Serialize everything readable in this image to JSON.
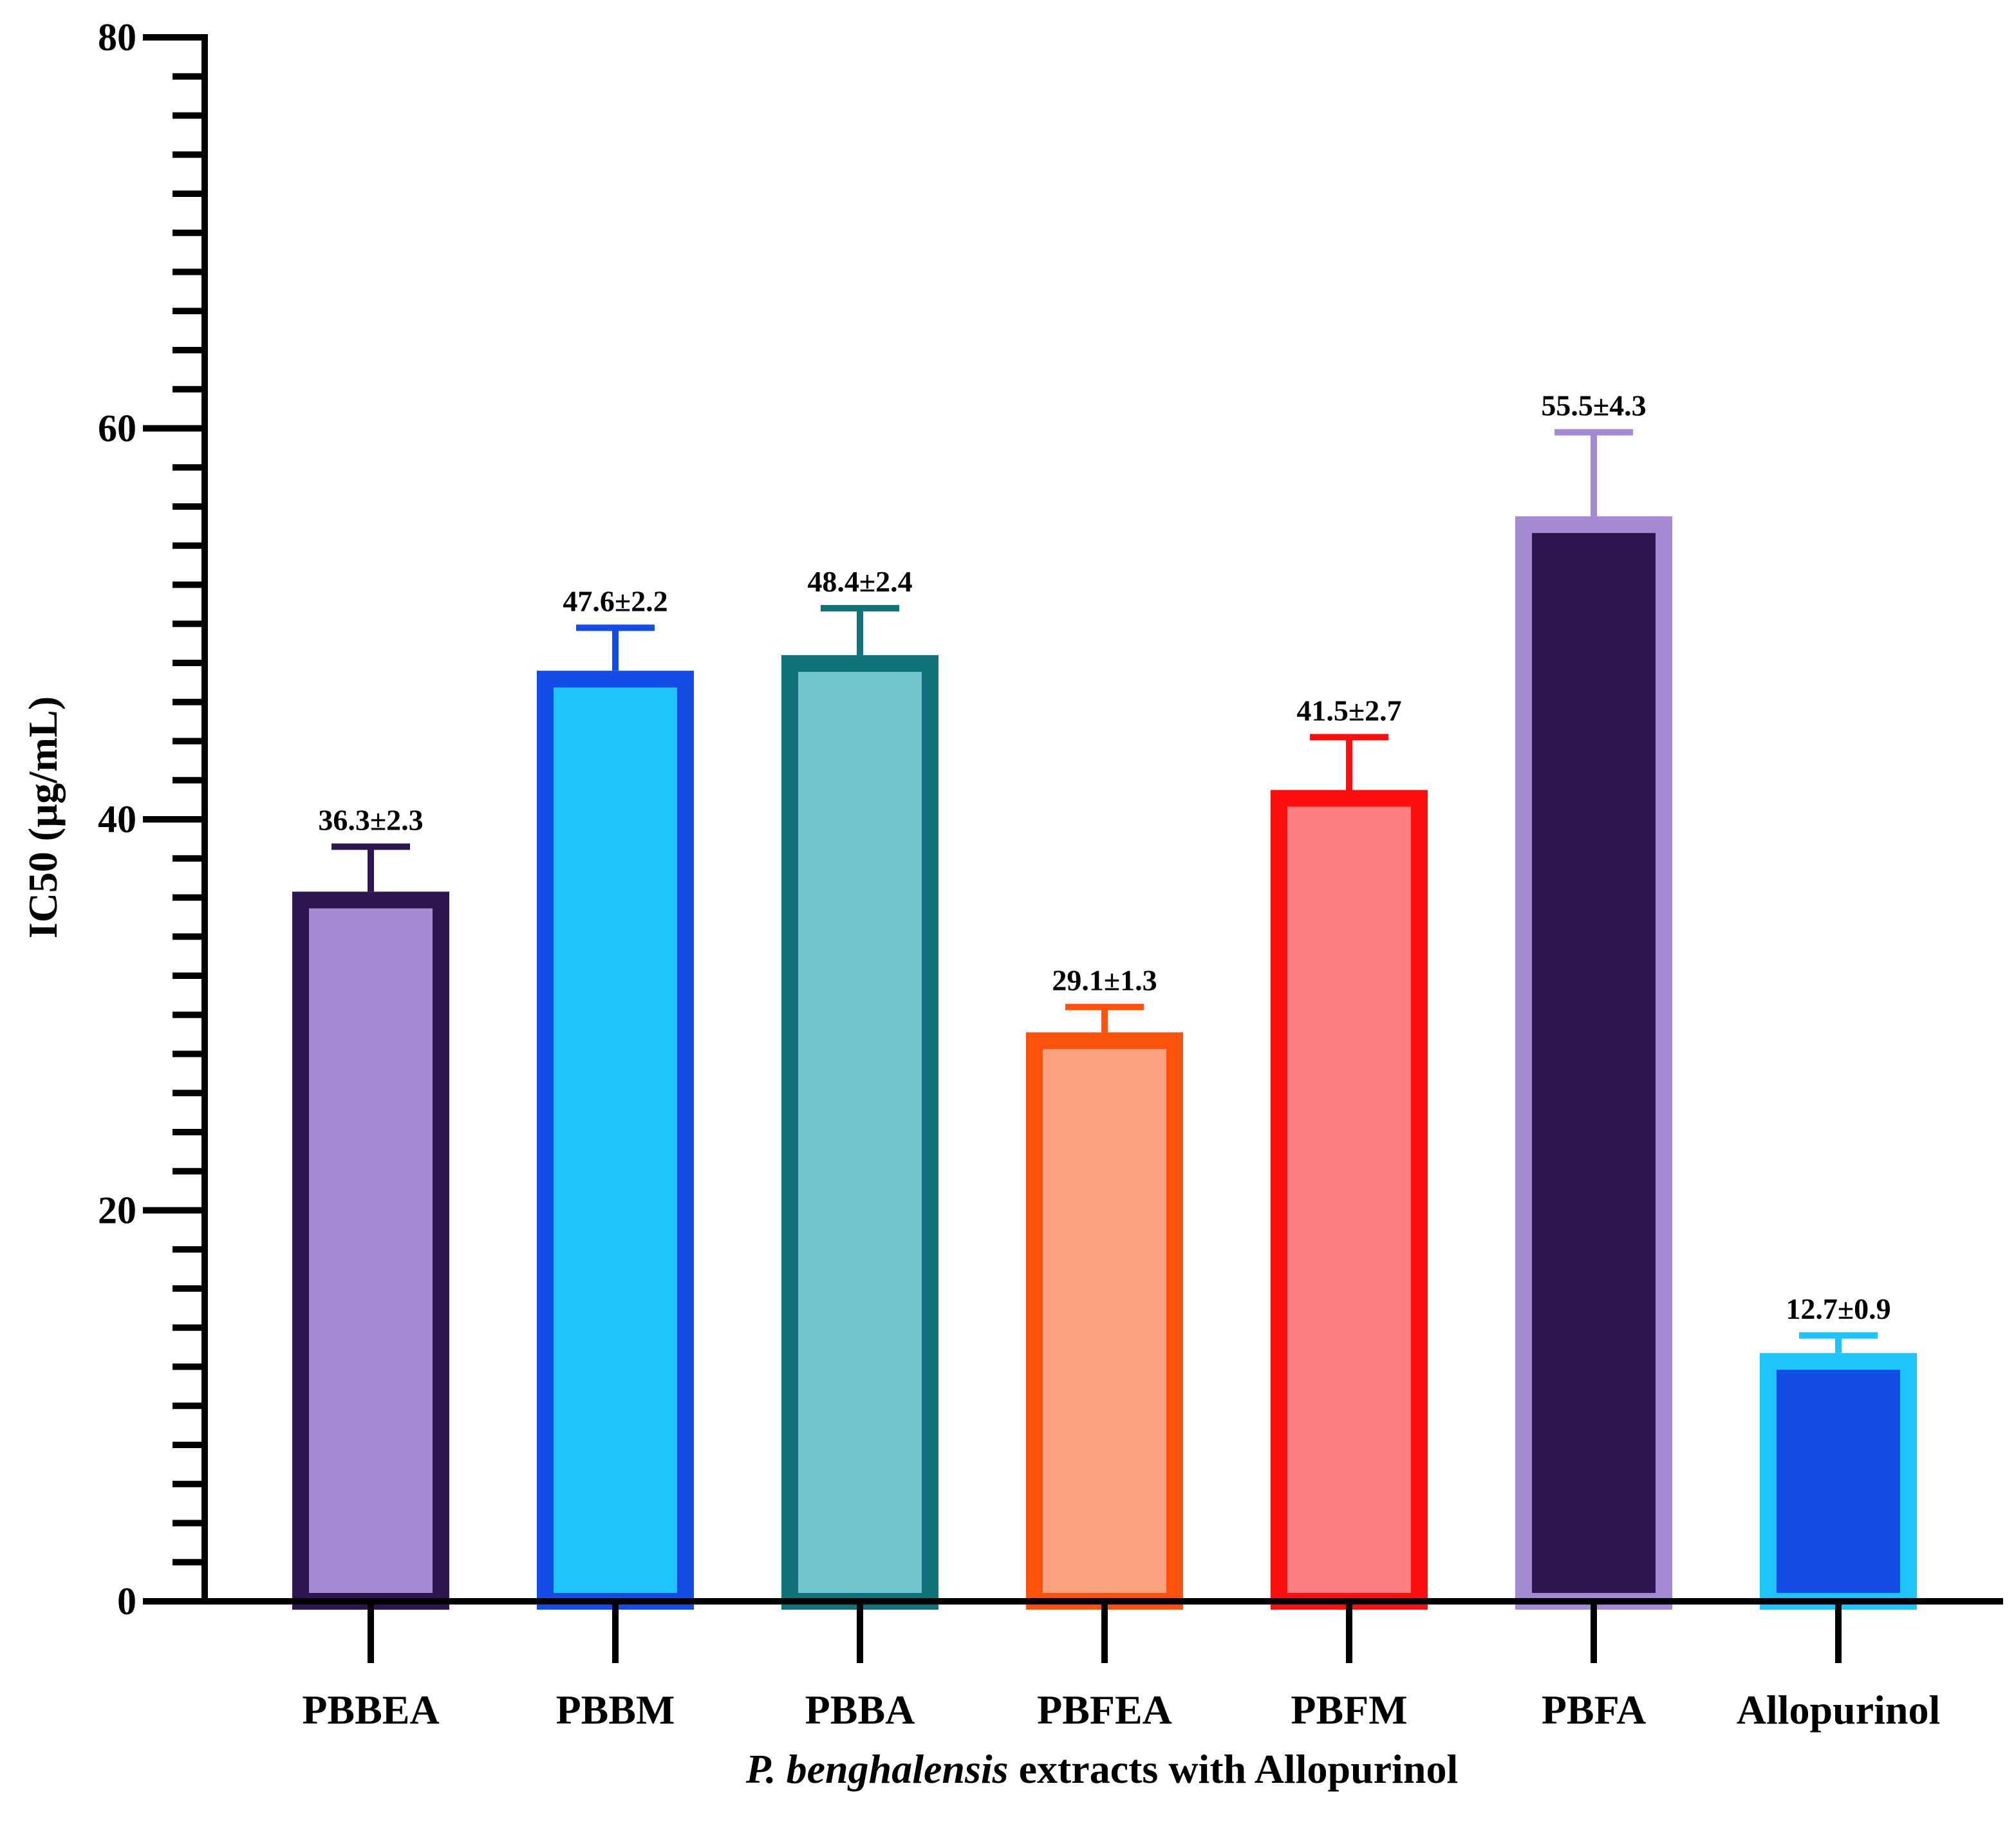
{
  "chart_data": {
    "type": "bar",
    "ylabel": "IC50 (µg/mL)",
    "xlabel_italic": "P. benghalensis",
    "xlabel_rest": " extracts with Allopurinol",
    "ylim": [
      0,
      80
    ],
    "yticks": [
      0,
      20,
      40,
      60,
      80
    ],
    "categories": [
      "PBBEA",
      "PBBM",
      "PBBA",
      "PBFEA",
      "PBFM",
      "PBFA",
      "Allopurinol"
    ],
    "values": [
      36.3,
      47.6,
      48.4,
      29.1,
      41.5,
      55.5,
      12.7
    ],
    "errors": [
      2.3,
      2.2,
      2.4,
      1.3,
      2.7,
      4.3,
      0.9
    ],
    "data_labels": [
      "36.3±2.3",
      "47.6±2.2",
      "48.4±2.4",
      "29.1±1.3",
      "41.5±2.7",
      "55.5±4.3",
      "12.7±0.9"
    ],
    "fill_colors": [
      "#a48ad3",
      "#1fc4fc",
      "#72c7cf",
      "#f9a27d",
      "#fb7d7f",
      "#2e1550",
      "#144de6"
    ],
    "border_colors": [
      "#2e1550",
      "#144de6",
      "#10727a",
      "#fd520b",
      "#fd0f0f",
      "#a48ad3",
      "#1fc4fc"
    ]
  }
}
